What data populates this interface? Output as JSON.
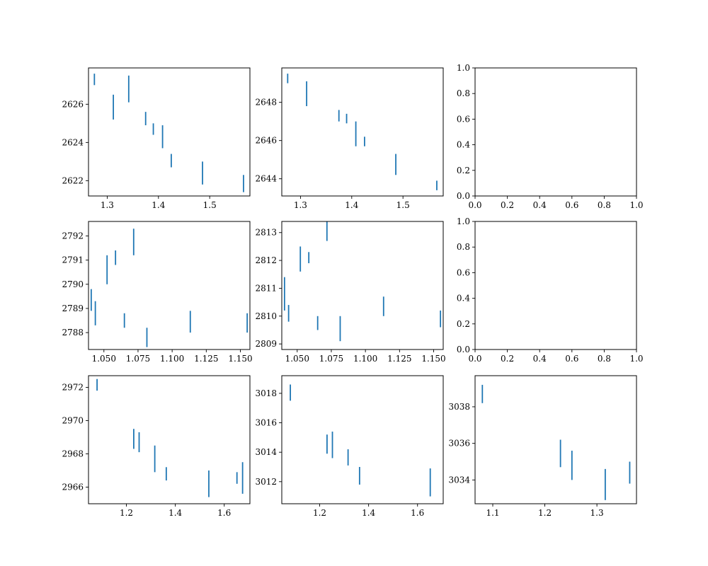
{
  "figure": {
    "accent_color": "#1f77b4"
  },
  "chart_data": [
    {
      "type": "errorbar",
      "row": 0,
      "col": 0,
      "xlim": [
        1.2635,
        1.5785
      ],
      "ylim": [
        2621.2,
        2627.9
      ],
      "xticks": [
        1.3,
        1.4,
        1.5
      ],
      "xtick_labels": [
        "1.3",
        "1.4",
        "1.5"
      ],
      "yticks": [
        2622,
        2624,
        2626
      ],
      "ytick_labels": [
        "2622",
        "2624",
        "2626"
      ],
      "series": [
        {
          "x": [
            1.275,
            1.312,
            1.342,
            1.375,
            1.39,
            1.408,
            1.425,
            1.486,
            1.566
          ],
          "ylow": [
            2627.0,
            2625.2,
            2626.1,
            2624.9,
            2624.4,
            2623.7,
            2622.7,
            2621.8,
            2621.4
          ],
          "yhigh": [
            2627.6,
            2626.5,
            2627.5,
            2625.6,
            2625.0,
            2624.9,
            2623.4,
            2623.0,
            2622.3
          ]
        }
      ]
    },
    {
      "type": "errorbar",
      "row": 0,
      "col": 1,
      "xlim": [
        1.2635,
        1.5785
      ],
      "ylim": [
        2643.1,
        2649.8
      ],
      "xticks": [
        1.3,
        1.4,
        1.5
      ],
      "xtick_labels": [
        "1.3",
        "1.4",
        "1.5"
      ],
      "yticks": [
        2644,
        2646,
        2648
      ],
      "ytick_labels": [
        "2644",
        "2646",
        "2648"
      ],
      "series": [
        {
          "x": [
            1.275,
            1.312,
            1.375,
            1.39,
            1.408,
            1.425,
            1.486,
            1.566
          ],
          "ylow": [
            2649.0,
            2647.8,
            2647.0,
            2646.9,
            2645.7,
            2645.7,
            2644.2,
            2643.4
          ],
          "yhigh": [
            2649.5,
            2649.1,
            2647.6,
            2647.4,
            2647.0,
            2646.2,
            2645.3,
            2643.9
          ]
        }
      ]
    },
    {
      "type": "empty",
      "row": 0,
      "col": 2,
      "xlim": [
        0,
        1
      ],
      "ylim": [
        0,
        1
      ],
      "xticks": [
        0.0,
        0.2,
        0.4,
        0.6,
        0.8,
        1.0
      ],
      "xtick_labels": [
        "0.0",
        "0.2",
        "0.4",
        "0.6",
        "0.8",
        "1.0"
      ],
      "yticks": [
        0.0,
        0.2,
        0.4,
        0.6,
        0.8,
        1.0
      ],
      "ytick_labels": [
        "0.0",
        "0.2",
        "0.4",
        "0.6",
        "0.8",
        "1.0"
      ],
      "series": []
    },
    {
      "type": "errorbar",
      "row": 1,
      "col": 0,
      "xlim": [
        1.0387,
        1.157
      ],
      "ylim": [
        2787.3,
        2792.6
      ],
      "xticks": [
        1.05,
        1.075,
        1.1,
        1.125,
        1.15
      ],
      "xtick_labels": [
        "1.050",
        "1.075",
        "1.100",
        "1.125",
        "1.150"
      ],
      "yticks": [
        2788,
        2789,
        2790,
        2791,
        2792
      ],
      "ytick_labels": [
        "2788",
        "2789",
        "2790",
        "2791",
        "2792"
      ],
      "series": [
        {
          "x": [
            1.0407,
            1.0437,
            1.0523,
            1.0585,
            1.0718,
            1.065,
            1.0815,
            1.1133,
            1.155
          ],
          "ylow": [
            2788.9,
            2788.3,
            2790.0,
            2790.8,
            2791.2,
            2788.2,
            2787.4,
            2788.0,
            2788.0
          ],
          "yhigh": [
            2789.8,
            2789.3,
            2791.2,
            2791.4,
            2792.3,
            2788.8,
            2788.2,
            2788.9,
            2788.8
          ]
        }
      ]
    },
    {
      "type": "errorbar",
      "row": 1,
      "col": 1,
      "xlim": [
        1.0387,
        1.157
      ],
      "ylim": [
        2808.8,
        2813.4
      ],
      "xticks": [
        1.05,
        1.075,
        1.1,
        1.125,
        1.15
      ],
      "xtick_labels": [
        "1.050",
        "1.075",
        "1.100",
        "1.125",
        "1.150"
      ],
      "yticks": [
        2809,
        2810,
        2811,
        2812,
        2813
      ],
      "ytick_labels": [
        "2809",
        "2810",
        "2811",
        "2812",
        "2813"
      ],
      "series": [
        {
          "x": [
            1.0407,
            1.0437,
            1.0523,
            1.0585,
            1.0718,
            1.065,
            1.0815,
            1.1133,
            1.155
          ],
          "ylow": [
            2810.2,
            2809.8,
            2811.6,
            2811.9,
            2812.7,
            2809.5,
            2809.1,
            2810.0,
            2809.6
          ],
          "yhigh": [
            2811.4,
            2810.4,
            2812.5,
            2812.3,
            2813.4,
            2810.0,
            2810.0,
            2810.7,
            2810.2
          ]
        }
      ]
    },
    {
      "type": "empty",
      "row": 1,
      "col": 2,
      "xlim": [
        0,
        1
      ],
      "ylim": [
        0,
        1
      ],
      "xticks": [
        0.0,
        0.2,
        0.4,
        0.6,
        0.8,
        1.0
      ],
      "xtick_labels": [
        "0.0",
        "0.2",
        "0.4",
        "0.6",
        "0.8",
        "1.0"
      ],
      "yticks": [
        0.0,
        0.2,
        0.4,
        0.6,
        0.8,
        1.0
      ],
      "ytick_labels": [
        "0.0",
        "0.2",
        "0.4",
        "0.6",
        "0.8",
        "1.0"
      ],
      "series": []
    },
    {
      "type": "errorbar",
      "row": 2,
      "col": 0,
      "xlim": [
        1.045,
        1.705
      ],
      "ylim": [
        2965.0,
        2972.7
      ],
      "xticks": [
        1.2,
        1.4,
        1.6
      ],
      "xtick_labels": [
        "1.2",
        "1.4",
        "1.6"
      ],
      "yticks": [
        2966,
        2968,
        2970,
        2972
      ],
      "ytick_labels": [
        "2966",
        "2968",
        "2970",
        "2972"
      ],
      "series": [
        {
          "x": [
            1.08,
            1.23,
            1.252,
            1.316,
            1.363,
            1.537,
            1.652,
            1.675
          ],
          "ylow": [
            2971.8,
            2968.3,
            2968.1,
            2966.9,
            2966.4,
            2965.4,
            2966.2,
            2965.6
          ],
          "yhigh": [
            2972.5,
            2969.5,
            2969.3,
            2968.5,
            2967.2,
            2967.0,
            2966.9,
            2967.5
          ]
        }
      ]
    },
    {
      "type": "errorbar",
      "row": 2,
      "col": 1,
      "xlim": [
        1.045,
        1.705
      ],
      "ylim": [
        3010.5,
        3019.2
      ],
      "xticks": [
        1.2,
        1.4,
        1.6
      ],
      "xtick_labels": [
        "1.2",
        "1.4",
        "1.6"
      ],
      "yticks": [
        3012,
        3014,
        3016,
        3018
      ],
      "ytick_labels": [
        "3012",
        "3014",
        "3016",
        "3018"
      ],
      "series": [
        {
          "x": [
            1.08,
            1.23,
            1.252,
            1.316,
            1.363,
            1.652
          ],
          "ylow": [
            3017.5,
            3013.9,
            3013.6,
            3013.1,
            3011.8,
            3011.0
          ],
          "yhigh": [
            3018.6,
            3015.2,
            3015.4,
            3014.2,
            3013.0,
            3012.9
          ]
        }
      ]
    },
    {
      "type": "errorbar",
      "row": 2,
      "col": 2,
      "xlim": [
        1.066,
        1.376
      ],
      "ylim": [
        3032.7,
        3039.7
      ],
      "xticks": [
        1.1,
        1.2,
        1.3
      ],
      "xtick_labels": [
        "1.1",
        "1.2",
        "1.3"
      ],
      "yticks": [
        3034,
        3036,
        3038
      ],
      "ytick_labels": [
        "3034",
        "3036",
        "3038"
      ],
      "series": [
        {
          "x": [
            1.08,
            1.23,
            1.252,
            1.316,
            1.363
          ],
          "ylow": [
            3038.2,
            3034.7,
            3034.0,
            3032.9,
            3033.8
          ],
          "yhigh": [
            3039.2,
            3036.2,
            3035.6,
            3034.6,
            3035.0
          ]
        }
      ]
    }
  ]
}
